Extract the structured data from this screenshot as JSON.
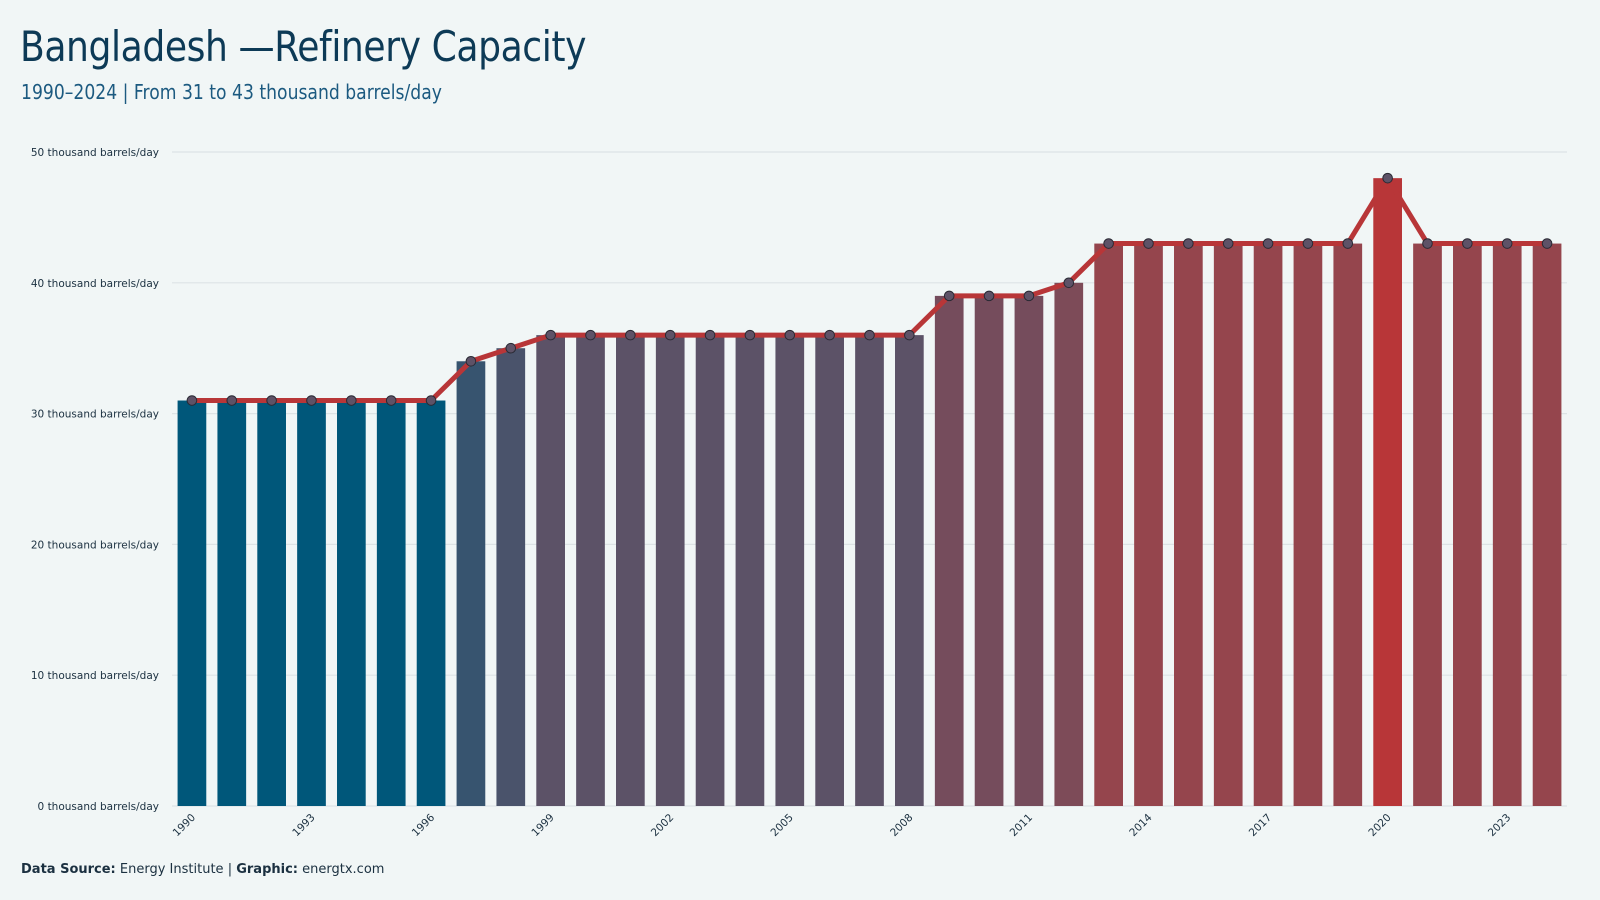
{
  "header": {
    "title": "Bangladesh —Refinery Capacity",
    "subtitle": "1990–2024 | From 31 to 43 thousand barrels/day"
  },
  "footer": {
    "source_label": "Data Source:",
    "source_value": "Energy Institute",
    "separator": "|",
    "graphic_label": "Graphic:",
    "graphic_value": "energtx.com"
  },
  "colors": {
    "background": "#f1f6f6",
    "bar_low": "#00577a",
    "bar_mid": "#5e5267",
    "bar_high": "#94454d",
    "bar_peak": "#b83638",
    "line": "#b83638",
    "marker_fill": "#5e5267",
    "grid": "#dde3e5"
  },
  "chart_data": {
    "type": "bar",
    "title": "Bangladesh —Refinery Capacity",
    "subtitle": "1990–2024 | From 31 to 43 thousand barrels/day",
    "unit": "thousand barrels/day",
    "x": [
      1990,
      1991,
      1992,
      1993,
      1994,
      1995,
      1996,
      1997,
      1998,
      1999,
      2000,
      2001,
      2002,
      2003,
      2004,
      2005,
      2006,
      2007,
      2008,
      2009,
      2010,
      2011,
      2012,
      2013,
      2014,
      2015,
      2016,
      2017,
      2018,
      2019,
      2020,
      2021,
      2022,
      2023,
      2024
    ],
    "values": [
      31,
      31,
      31,
      31,
      31,
      31,
      31,
      34,
      35,
      36,
      36,
      36,
      36,
      36,
      36,
      36,
      36,
      36,
      36,
      39,
      39,
      39,
      40,
      43,
      43,
      43,
      43,
      43,
      43,
      43,
      48,
      43,
      43,
      43,
      43
    ],
    "x_tick_labels": [
      "1990",
      "1993",
      "1996",
      "1999",
      "2002",
      "2005",
      "2008",
      "2011",
      "2014",
      "2017",
      "2020",
      "2023"
    ],
    "y_tick_labels": [
      "0 thousand barrels/day",
      "10 thousand barrels/day",
      "20 thousand barrels/day",
      "30 thousand barrels/day",
      "40 thousand barrels/day",
      "50 thousand barrels/day"
    ],
    "y_ticks": [
      0,
      10,
      20,
      30,
      40,
      50
    ],
    "ylim": [
      0,
      50
    ],
    "overlay": "line with markers",
    "grid": true,
    "legend": "none"
  }
}
